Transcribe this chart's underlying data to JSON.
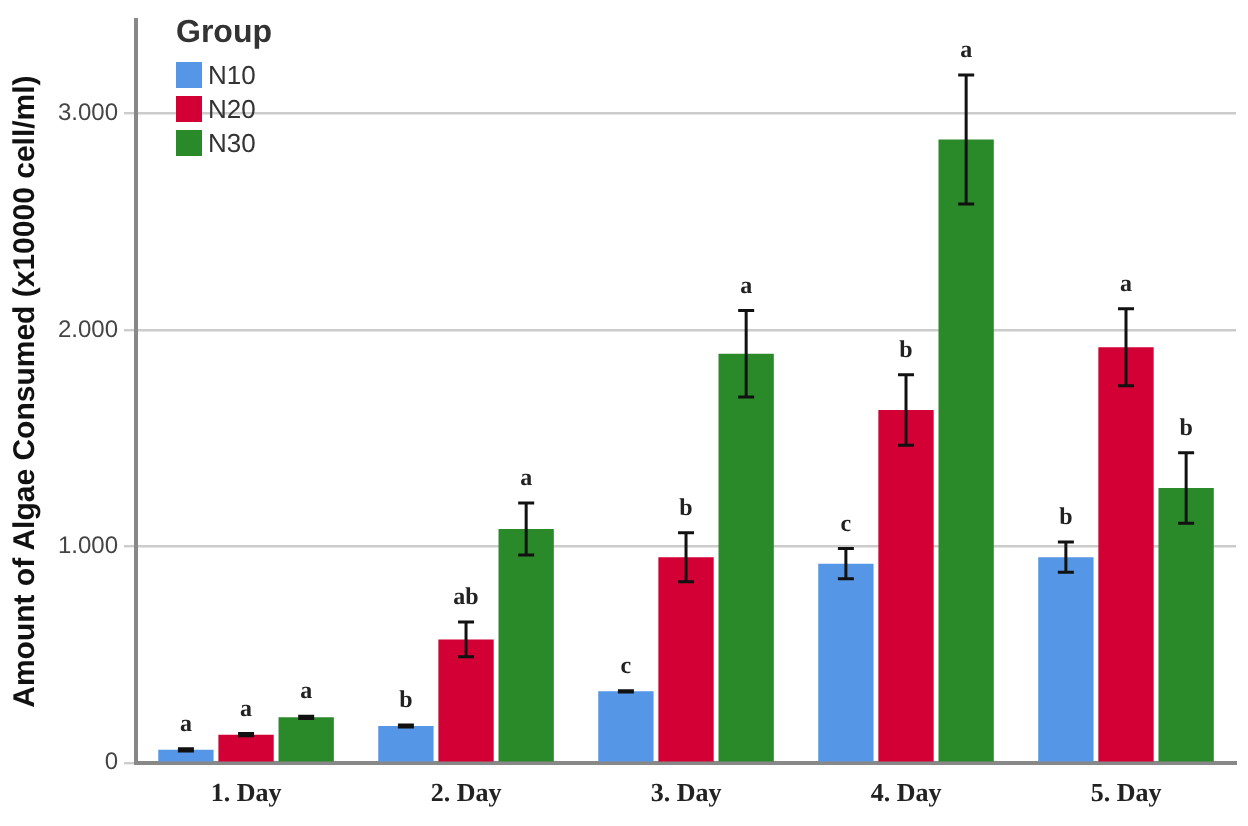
{
  "chart_data": {
    "type": "bar",
    "ylabel": "Amount of Algae Consumed (x10000 cell/ml)",
    "legend_title": "Group",
    "categories": [
      "1. Day",
      "2. Day",
      "3. Day",
      "4. Day",
      "5. Day"
    ],
    "series": [
      {
        "name": "N10",
        "color": "#5596e6",
        "values": [
          60,
          170,
          330,
          920,
          950
        ],
        "errors": [
          5,
          5,
          3,
          70,
          70
        ],
        "value_labels": [
          "a",
          "b",
          "c",
          "c",
          "b"
        ]
      },
      {
        "name": "N20",
        "color": "#d20035",
        "values": [
          130,
          570,
          950,
          1630,
          1920
        ],
        "errors": [
          5,
          80,
          113,
          163,
          178
        ],
        "value_labels": [
          "a",
          "ab",
          "b",
          "b",
          "a"
        ]
      },
      {
        "name": "N30",
        "color": "#2a8a2a",
        "values": [
          210,
          1080,
          1890,
          2880,
          1270
        ],
        "errors": [
          5,
          120,
          200,
          298,
          163
        ],
        "value_labels": [
          "a",
          "a",
          "a",
          "a",
          "b"
        ]
      }
    ],
    "ylim": [
      0,
      3430
    ],
    "yticks": [
      0,
      {
        "value": 1000,
        "label": "1.000"
      },
      {
        "value": 2000,
        "label": "2.000"
      },
      {
        "value": 3000,
        "label": "3.000"
      }
    ],
    "grid": "y",
    "legend": "top left"
  }
}
